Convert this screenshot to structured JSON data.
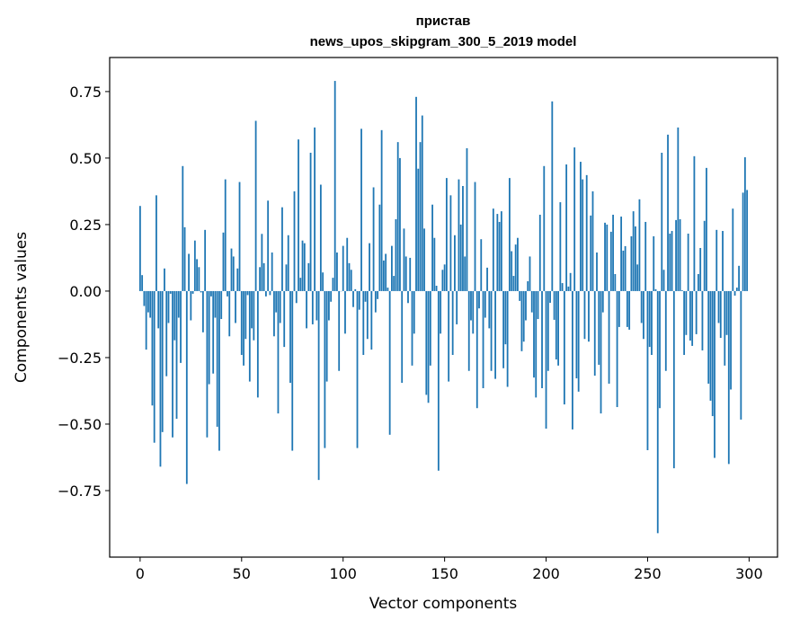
{
  "chart_data": {
    "type": "bar",
    "title": "пристав",
    "subtitle": "news_upos_skipgram_300_5_2019 model",
    "xlabel": "Vector components",
    "ylabel": "Components values",
    "xlim": [
      -15,
      314
    ],
    "ylim": [
      -1.0,
      0.878
    ],
    "xticks": [
      0,
      50,
      100,
      150,
      200,
      250,
      300
    ],
    "xtick_labels": [
      "0",
      "50",
      "100",
      "150",
      "200",
      "250",
      "300"
    ],
    "yticks": [
      -0.75,
      -0.5,
      -0.25,
      0,
      0.25,
      0.5,
      0.75
    ],
    "ytick_labels": [
      "−0.75",
      "−0.50",
      "−0.25",
      "0.00",
      "0.25",
      "0.50",
      "0.75"
    ],
    "grid": false,
    "bar_color": "#1f77b4",
    "values": [
      0.32,
      0.06,
      -0.056,
      -0.22,
      -0.08,
      -0.1,
      -0.43,
      -0.57,
      0.36,
      -0.14,
      -0.66,
      -0.53,
      0.085,
      -0.32,
      -0.12,
      -0.01,
      -0.55,
      -0.185,
      -0.48,
      -0.1,
      -0.27,
      0.47,
      0.24,
      -0.725,
      0.14,
      -0.11,
      -0.01,
      0.19,
      0.12,
      0.09,
      -0.005,
      -0.155,
      0.23,
      -0.55,
      -0.35,
      -0.02,
      -0.31,
      -0.1,
      -0.51,
      -0.6,
      -0.105,
      0.22,
      0.42,
      -0.02,
      -0.17,
      0.16,
      0.13,
      -0.12,
      0.085,
      0.41,
      -0.24,
      -0.28,
      -0.18,
      -0.015,
      -0.34,
      -0.14,
      -0.185,
      0.64,
      -0.4,
      0.09,
      0.215,
      0.105,
      -0.02,
      0.34,
      -0.015,
      0.145,
      -0.17,
      -0.08,
      -0.46,
      -0.12,
      0.315,
      -0.21,
      0.1,
      0.21,
      -0.345,
      -0.6,
      0.375,
      -0.045,
      0.57,
      0.05,
      0.19,
      0.18,
      -0.14,
      0.105,
      0.52,
      -0.125,
      0.615,
      -0.11,
      -0.71,
      0.4,
      0.07,
      -0.59,
      -0.34,
      -0.11,
      -0.04,
      0.05,
      0.79,
      0.145,
      -0.3,
      0.0,
      0.17,
      -0.16,
      0.2,
      0.105,
      0.08,
      -0.06,
      0.007,
      -0.59,
      -0.07,
      0.61,
      -0.24,
      -0.04,
      -0.18,
      0.18,
      -0.22,
      0.39,
      -0.08,
      -0.03,
      0.325,
      0.605,
      0.115,
      0.14,
      0.013,
      -0.54,
      0.17,
      0.057,
      0.27,
      0.56,
      0.5,
      -0.345,
      0.235,
      0.13,
      -0.045,
      0.125,
      -0.28,
      -0.16,
      0.73,
      0.46,
      0.56,
      0.66,
      0.235,
      -0.39,
      -0.42,
      -0.28,
      0.325,
      0.2,
      0.02,
      -0.675,
      -0.16,
      0.08,
      0.1,
      0.425,
      -0.34,
      0.36,
      -0.24,
      0.21,
      -0.125,
      0.42,
      0.25,
      0.395,
      0.13,
      0.537,
      -0.3,
      -0.11,
      -0.16,
      0.41,
      -0.44,
      -0.065,
      0.195,
      -0.365,
      -0.1,
      0.088,
      -0.14,
      -0.3,
      0.31,
      -0.33,
      0.29,
      0.26,
      0.3,
      -0.29,
      -0.2,
      -0.36,
      0.425,
      0.15,
      0.057,
      0.175,
      0.2,
      -0.037,
      -0.226,
      -0.19,
      -0.11,
      0.037,
      0.13,
      -0.08,
      -0.325,
      -0.4,
      -0.105,
      0.287,
      -0.365,
      0.47,
      -0.517,
      -0.3,
      -0.044,
      0.713,
      -0.108,
      -0.257,
      -0.28,
      0.334,
      0.03,
      -0.426,
      0.476,
      0.017,
      0.068,
      -0.52,
      0.54,
      -0.328,
      -0.378,
      0.486,
      0.42,
      -0.18,
      0.436,
      -0.19,
      0.284,
      0.375,
      -0.318,
      0.145,
      -0.277,
      -0.46,
      -0.08,
      0.257,
      0.25,
      -0.348,
      0.223,
      0.287,
      0.064,
      -0.436,
      -0.135,
      0.28,
      0.152,
      0.169,
      -0.135,
      -0.145,
      0.206,
      0.3,
      0.243,
      0.1,
      0.345,
      -0.12,
      -0.18,
      0.26,
      -0.598,
      -0.21,
      -0.24,
      0.206,
      0.007,
      -0.91,
      -0.44,
      0.52,
      0.08,
      -0.3,
      0.588,
      0.216,
      0.226,
      -0.666,
      0.267,
      0.615,
      0.27,
      0.003,
      -0.24,
      -0.165,
      0.216,
      -0.186,
      -0.206,
      0.507,
      -0.162,
      0.064,
      0.162,
      -0.223,
      0.264,
      0.463,
      -0.348,
      -0.412,
      -0.47,
      -0.627,
      0.23,
      -0.12,
      -0.176,
      0.226,
      -0.28,
      -0.165,
      -0.65,
      -0.37,
      0.31,
      -0.017,
      0.013,
      0.095,
      -0.483,
      0.37,
      0.503,
      0.38
    ]
  }
}
